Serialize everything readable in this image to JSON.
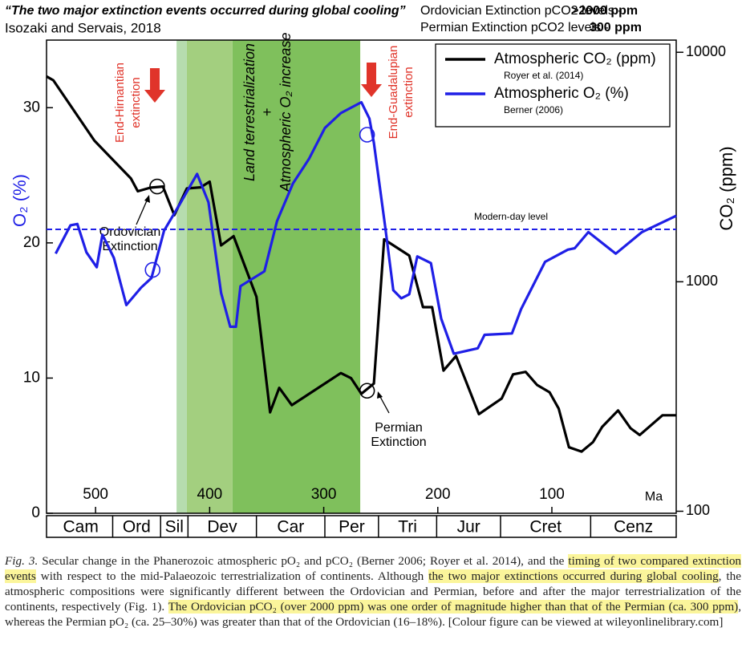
{
  "header": {
    "title": "“The two major extinction events occurred during global cooling”",
    "subtitle": "Isozaki and Servais, 2018",
    "notes": [
      {
        "label": "Ordovician Extinction pCO2 levels -",
        "value": ">2000 ppm"
      },
      {
        "label": "Permian Extinction pCO2 levels -",
        "value": "300 ppm"
      }
    ]
  },
  "chart_data": {
    "type": "line",
    "ylabel": "O₂ (%)",
    "y2label": "CO₂ (ppm)",
    "xunit": "Ma",
    "xlim": [
      543,
      -9
    ],
    "xticks": [
      500,
      400,
      300,
      200,
      100
    ],
    "ylim": [
      0,
      35
    ],
    "yticks": [
      0,
      10,
      20,
      30
    ],
    "y2lim": [
      98,
      11300
    ],
    "y2ticks": [
      100,
      1000,
      10000
    ],
    "y2log": true,
    "legend": "top-right",
    "series": [
      {
        "name": "Atmospheric CO₂ (ppm)",
        "source": "Royer et al. (2014)",
        "color": "#000000",
        "axis": "y2",
        "x": [
          543,
          537,
          501,
          469,
          463,
          452,
          441,
          431,
          420,
          408,
          400,
          390,
          379,
          359,
          347,
          339,
          328,
          285,
          276,
          267,
          256,
          247,
          225,
          213,
          205,
          195,
          184,
          164,
          144,
          134,
          123,
          113,
          102,
          94,
          85,
          74,
          64,
          56,
          42,
          31,
          23,
          3,
          -9
        ],
        "values": [
          7850,
          7550,
          4120,
          2820,
          2480,
          2570,
          2600,
          1950,
          2550,
          2580,
          2730,
          1440,
          1580,
          860,
          270,
          345,
          290,
          400,
          380,
          325,
          360,
          1530,
          1300,
          775,
          775,
          410,
          475,
          265,
          310,
          395,
          405,
          355,
          330,
          280,
          190,
          182,
          200,
          233,
          275,
          230,
          215,
          262,
          262
        ]
      },
      {
        "name": "Atmospheric O₂ (%)",
        "source": "Berner (2006)",
        "color": "#1f1fe6",
        "axis": "y",
        "x": [
          535,
          522,
          516,
          508,
          499,
          494,
          484,
          473,
          460,
          451,
          440,
          426,
          411,
          401,
          390,
          382,
          377,
          373,
          352,
          341,
          327,
          313,
          299,
          285,
          267,
          260,
          256,
          246,
          239,
          232,
          225,
          218,
          206,
          197,
          186,
          165,
          159,
          135,
          127,
          106,
          86,
          80,
          68,
          44,
          21,
          -9
        ],
        "values": [
          19.2,
          21.3,
          21.4,
          19.3,
          18.2,
          20.6,
          18.9,
          15.4,
          16.7,
          17.4,
          20.9,
          22.9,
          25.1,
          23.0,
          16.3,
          13.8,
          13.8,
          16.8,
          17.9,
          21.6,
          24.4,
          26.2,
          28.5,
          29.6,
          30.4,
          29.2,
          27.4,
          21.1,
          16.5,
          15.9,
          16.2,
          19.0,
          18.5,
          14.4,
          11.8,
          12.2,
          13.2,
          13.3,
          15.1,
          18.6,
          19.5,
          19.6,
          20.8,
          19.2,
          20.8,
          22.0
        ]
      }
    ],
    "reference_line": {
      "value": 21,
      "label": "Modern-day level",
      "color": "#1f1fe6"
    },
    "bands": [
      {
        "from": 429,
        "to": 420,
        "color": "#b6dcae"
      },
      {
        "from": 420,
        "to": 380,
        "color": "#a3cf7f"
      },
      {
        "from": 380,
        "to": 268,
        "color": "#7fc05c"
      }
    ],
    "highlight_points": [
      {
        "x": 446,
        "y": 2600,
        "axis": "y2",
        "color": "#000000"
      },
      {
        "x": 450,
        "y": 18.0,
        "axis": "y",
        "color": "#1f1fe6"
      },
      {
        "x": 262,
        "y": 28.0,
        "axis": "y",
        "color": "#1f1fe6"
      },
      {
        "x": 262,
        "y": 335,
        "axis": "y2",
        "color": "#000000"
      }
    ],
    "periods": [
      {
        "name": "Cam",
        "from": 541,
        "to": 485
      },
      {
        "name": "Ord",
        "from": 485,
        "to": 443
      },
      {
        "name": "Sil",
        "from": 443,
        "to": 419
      },
      {
        "name": "Dev",
        "from": 419,
        "to": 359
      },
      {
        "name": "Car",
        "from": 359,
        "to": 299
      },
      {
        "name": "Per",
        "from": 299,
        "to": 252
      },
      {
        "name": "Tri",
        "from": 252,
        "to": 201
      },
      {
        "name": "Jur",
        "from": 201,
        "to": 145
      },
      {
        "name": "Cret",
        "from": 145,
        "to": 66
      },
      {
        "name": "Cenz",
        "from": 66,
        "to": -9
      }
    ],
    "annotations": {
      "end_hirnantian": [
        "End-Hirnantian",
        "extinction"
      ],
      "end_guadalupian": [
        "End-Guadalupian",
        "extinction"
      ],
      "terrestrialization": [
        "Land terrestrialization",
        "+",
        "Atmospheric O₂ increase"
      ],
      "ordovician": [
        "Ordovician",
        "Extinction"
      ],
      "permian": [
        "Permian",
        "Extinction"
      ]
    }
  },
  "caption": [
    {
      "text": "Fig. 3.",
      "italic": true
    },
    {
      "text": "  Secular change in the Phanerozoic atmospheric pO₂ and pCO₂ (Berner 2006; Royer et al. 2014), and the "
    },
    {
      "text": "timing of two compared extinction events",
      "highlight": true
    },
    {
      "text": " with respect to the mid-Palaeozoic terrestrialization of continents. Although "
    },
    {
      "text": "the two major extinctions occurred during global cooling",
      "highlight": true
    },
    {
      "text": ", the atmospheric compositions were significantly different between the Ordovician and Permian, before and after the major terrestrialization of the continents, respectively (Fig. 1). "
    },
    {
      "text": "The Ordovician pCO₂ (over 2000 ppm) was one order of magnitude higher than that of the Permian (ca. 300 ppm)",
      "highlight": true
    },
    {
      "text": ", whereas the Permian pO₂ (ca. 25–30%) was greater than that of the Ordovician (16–18%). [Colour figure can be viewed at wileyonlinelibrary.com]"
    }
  ]
}
